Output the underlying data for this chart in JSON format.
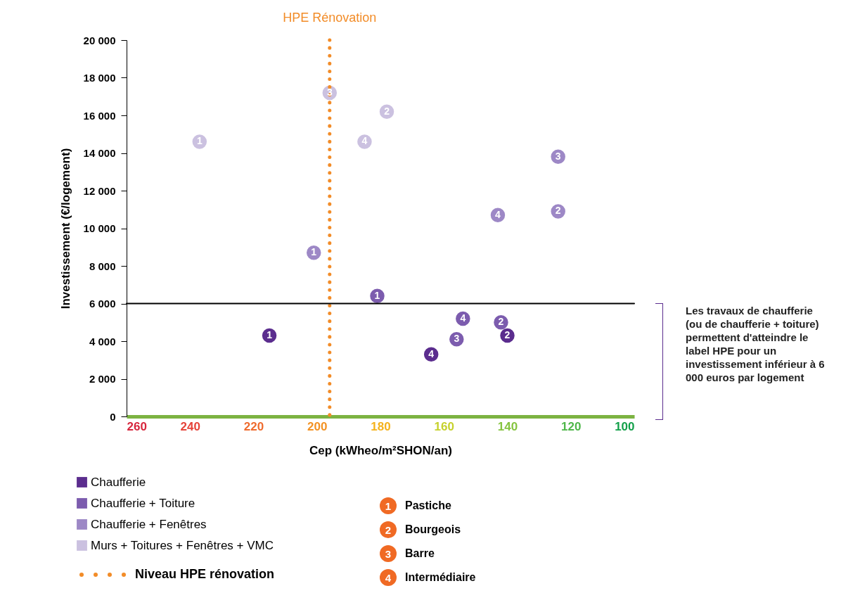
{
  "chart_data": {
    "type": "scatter",
    "xlabel": "Cep (kWheo/m²SHON/an)",
    "ylabel": "Investissement (€/logement)",
    "xlim": [
      260,
      100
    ],
    "xticks": [
      260,
      240,
      220,
      200,
      180,
      160,
      140,
      120,
      100
    ],
    "ylim": [
      0,
      20000
    ],
    "yticks": [
      {
        "value": 0,
        "label": "0"
      },
      {
        "value": 2000,
        "label": "2 000"
      },
      {
        "value": 4000,
        "label": "4 000"
      },
      {
        "value": 6000,
        "label": "6 000"
      },
      {
        "value": 8000,
        "label": "8 000"
      },
      {
        "value": 10000,
        "label": "10 000"
      },
      {
        "value": 12000,
        "label": "12 000"
      },
      {
        "value": 14000,
        "label": "14 000"
      },
      {
        "value": 16000,
        "label": "16 000"
      },
      {
        "value": 18000,
        "label": "18 000"
      },
      {
        "value": 20000,
        "label": "20 000"
      }
    ],
    "series": [
      {
        "name": "Chaufferie",
        "color": "#5b2d8e",
        "x": [
          215,
          140,
          164
        ],
        "values": [
          4300,
          4300,
          3300
        ]
      },
      {
        "name": "Chaufferie + Toiture",
        "color": "#7c5cae",
        "x": [
          181,
          142,
          156,
          154
        ],
        "values": [
          6400,
          5000,
          4100,
          5200
        ]
      },
      {
        "name": "Chaufferie + Fenêtres",
        "color": "#9d88c6",
        "x": [
          201,
          124,
          124,
          143
        ],
        "values": [
          8700,
          10900,
          13800,
          10700
        ]
      },
      {
        "name": "Murs + Toitures + Fenêtres + VMC",
        "color": "#cbc1e0",
        "x": [
          237,
          178,
          196,
          185
        ],
        "values": [
          14600,
          16200,
          17200,
          14600
        ]
      }
    ],
    "ref_lines": [
      {
        "axis": "x",
        "value": 196,
        "label": "HPE Rénovation",
        "color": "#f28c28",
        "line_style": "dotted"
      },
      {
        "axis": "y",
        "value": 6000,
        "label": null,
        "color": "#000000",
        "line_style": "solid"
      }
    ],
    "annotations": [
      "Les travaux de chaufferie (ou de chaufferie + toiture) permettent d'atteindre le label HPE pour un investissement inférieur à 6 000 euros par logement",
      "Niveau HPE rénovation",
      "1",
      "Pastiche",
      "2",
      "Bourgeois",
      "3",
      "Barre",
      "4",
      "Intermédiaire",
      {
        "text": "1",
        "x": 215,
        "y": 4300
      },
      {
        "text": "2",
        "x": 140,
        "y": 4300
      },
      {
        "text": "4",
        "x": 164,
        "y": 3300
      },
      {
        "text": "1",
        "x": 181,
        "y": 6400
      },
      {
        "text": "2",
        "x": 142,
        "y": 5000
      },
      {
        "text": "3",
        "x": 156,
        "y": 4100
      },
      {
        "text": "4",
        "x": 154,
        "y": 5200
      },
      {
        "text": "1",
        "x": 201,
        "y": 8700
      },
      {
        "text": "2",
        "x": 124,
        "y": 10900
      },
      {
        "text": "3",
        "x": 124,
        "y": 13800
      },
      {
        "text": "4",
        "x": 143,
        "y": 10700
      },
      {
        "text": "1",
        "x": 237,
        "y": 14600
      },
      {
        "text": "2",
        "x": 178,
        "y": 16200
      },
      {
        "text": "3",
        "x": 196,
        "y": 17200
      },
      {
        "text": "4",
        "x": 185,
        "y": 14600
      }
    ],
    "legend": "bottom left",
    "marker": "circle",
    "grid": false
  }
}
